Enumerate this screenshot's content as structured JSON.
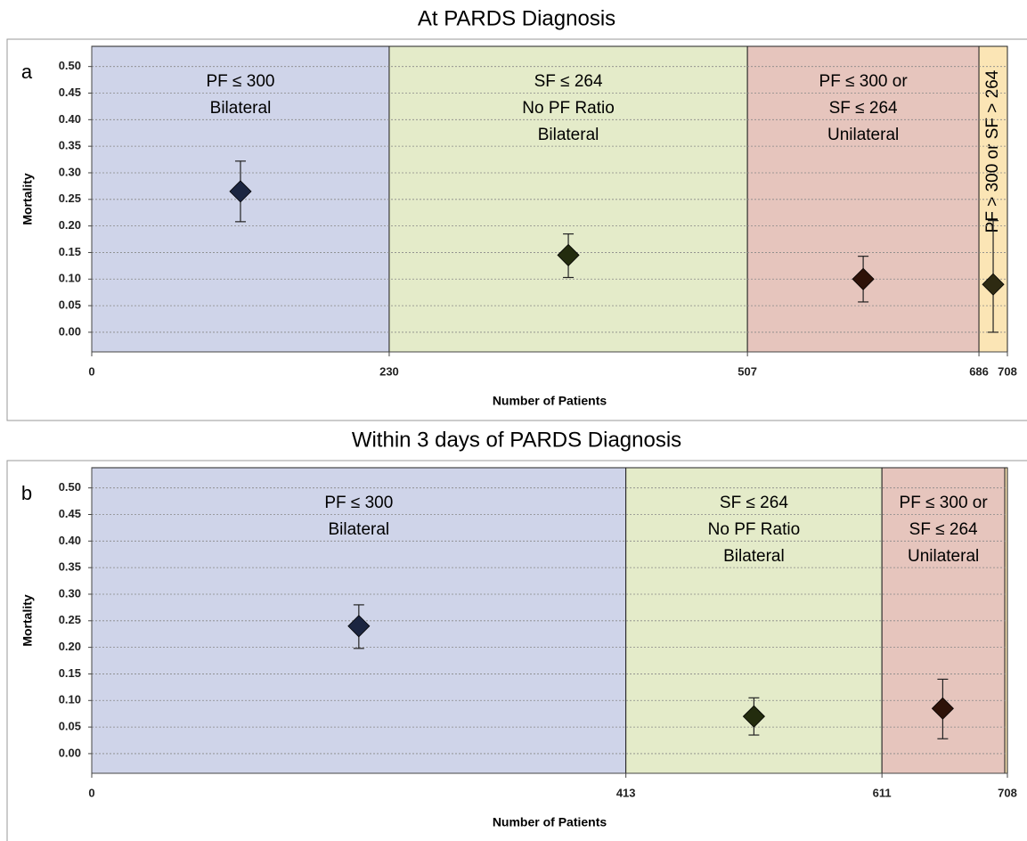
{
  "chart_data": [
    {
      "type": "scatter",
      "title": "At PARDS Diagnosis",
      "panel_label": "a",
      "xlabel": "Number of Patients",
      "ylabel": "Mortality",
      "xlim": [
        0,
        708
      ],
      "ylim": [
        -0.037,
        0.538
      ],
      "grid": true,
      "xticks": [
        0,
        230,
        507,
        686,
        708
      ],
      "yticks": [
        {
          "value": 0,
          "label": "0.00"
        },
        {
          "value": 0.05,
          "label": "0.05"
        },
        {
          "value": 0.1,
          "label": "0.10"
        },
        {
          "value": 0.15,
          "label": "0.15"
        },
        {
          "value": 0.2,
          "label": "0.20"
        },
        {
          "value": 0.25,
          "label": "0.25"
        },
        {
          "value": 0.3,
          "label": "0.30"
        },
        {
          "value": 0.35,
          "label": "0.35"
        },
        {
          "value": 0.4,
          "label": "0.40"
        },
        {
          "value": 0.45,
          "label": "0.45"
        },
        {
          "value": 0.5,
          "label": "0.50"
        }
      ],
      "bands": [
        {
          "range": [
            0,
            230
          ],
          "color": "#cfd4e9",
          "label": [
            "PF ≤ 300",
            "Bilateral"
          ]
        },
        {
          "range": [
            230,
            507
          ],
          "color": "#e4ebc9",
          "label": [
            "SF ≤ 264",
            "No PF Ratio",
            "Bilateral"
          ]
        },
        {
          "range": [
            507,
            686
          ],
          "color": "#e6c5bd",
          "label": [
            "PF ≤ 300 or",
            "SF ≤ 264",
            "Unilateral"
          ]
        },
        {
          "range": [
            686,
            708
          ],
          "color": "#fbe5b5",
          "label": [
            "PF > 300 or SF > 264"
          ]
        }
      ],
      "x": [
        115,
        368.5,
        596.5,
        697
      ],
      "values": [
        0.265,
        0.145,
        0.1,
        0.09
      ],
      "lower": [
        0.208,
        0.103,
        0.057,
        0
      ],
      "upper": [
        0.322,
        0.185,
        0.143,
        0.21
      ],
      "marker_colors": [
        "#1b2540",
        "#232c0e",
        "#2e1208",
        "#2e2a12"
      ]
    },
    {
      "type": "scatter",
      "title": "Within 3 days of PARDS Diagnosis",
      "panel_label": "b",
      "xlabel": "Number of Patients",
      "ylabel": "Mortality",
      "xlim": [
        0,
        708
      ],
      "ylim": [
        -0.037,
        0.538
      ],
      "grid": true,
      "xticks": [
        0,
        413,
        611,
        708
      ],
      "yticks": [
        {
          "value": 0,
          "label": "0.00"
        },
        {
          "value": 0.05,
          "label": "0.05"
        },
        {
          "value": 0.1,
          "label": "0.10"
        },
        {
          "value": 0.15,
          "label": "0.15"
        },
        {
          "value": 0.2,
          "label": "0.20"
        },
        {
          "value": 0.25,
          "label": "0.25"
        },
        {
          "value": 0.3,
          "label": "0.30"
        },
        {
          "value": 0.35,
          "label": "0.35"
        },
        {
          "value": 0.4,
          "label": "0.40"
        },
        {
          "value": 0.45,
          "label": "0.45"
        },
        {
          "value": 0.5,
          "label": "0.50"
        }
      ],
      "bands": [
        {
          "range": [
            0,
            413
          ],
          "color": "#cfd4e9",
          "label": [
            "PF ≤ 300",
            "Bilateral"
          ]
        },
        {
          "range": [
            413,
            611
          ],
          "color": "#e4ebc9",
          "label": [
            "SF ≤ 264",
            "No PF Ratio",
            "Bilateral"
          ]
        },
        {
          "range": [
            611,
            706
          ],
          "color": "#e6c5bd",
          "label": [
            "PF ≤ 300 or",
            "SF ≤ 264",
            "Unilateral"
          ]
        },
        {
          "range": [
            706,
            708
          ],
          "color": "#fbe5b5"
        }
      ],
      "x": [
        206.5,
        512,
        658
      ],
      "values": [
        0.24,
        0.07,
        0.085
      ],
      "lower": [
        0.198,
        0.035,
        0.028
      ],
      "upper": [
        0.28,
        0.105,
        0.14
      ],
      "marker_colors": [
        "#1b2540",
        "#232c0e",
        "#2e1208"
      ]
    }
  ]
}
